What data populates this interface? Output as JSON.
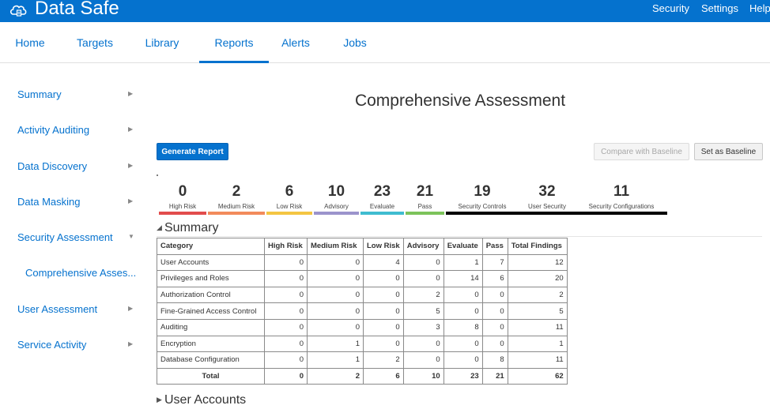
{
  "app": {
    "title": "Data Safe"
  },
  "top_links": {
    "security": "Security",
    "settings": "Settings",
    "help": "Help"
  },
  "nav": {
    "tabs": [
      {
        "label": "Home"
      },
      {
        "label": "Targets"
      },
      {
        "label": "Library"
      },
      {
        "label": "Reports",
        "active": true
      },
      {
        "label": "Alerts"
      },
      {
        "label": "Jobs"
      }
    ]
  },
  "sidebar": {
    "items": [
      {
        "label": "Summary",
        "arrow": "▶"
      },
      {
        "label": "Activity Auditing",
        "arrow": "▶"
      },
      {
        "label": "Data Discovery",
        "arrow": "▶"
      },
      {
        "label": "Data Masking",
        "arrow": "▶"
      },
      {
        "label": "Security Assessment",
        "arrow": "▼"
      },
      {
        "label": "Comprehensive Asses..."
      },
      {
        "label": "User Assessment",
        "arrow": "▶"
      },
      {
        "label": "Service Activity",
        "arrow": "▶"
      }
    ]
  },
  "page": {
    "title": "Comprehensive Assessment"
  },
  "actions": {
    "generate": "Generate Report",
    "compare": "Compare with Baseline",
    "baseline": "Set as Baseline"
  },
  "stats": [
    {
      "value": "0",
      "label": "High Risk",
      "color": "#e24c4c"
    },
    {
      "value": "2",
      "label": "Medium Risk",
      "color": "#f28b5b"
    },
    {
      "value": "6",
      "label": "Low Risk",
      "color": "#f4c542"
    },
    {
      "value": "10",
      "label": "Advisory",
      "color": "#9b93cc"
    },
    {
      "value": "23",
      "label": "Evaluate",
      "color": "#3fbcd0"
    },
    {
      "value": "21",
      "label": "Pass",
      "color": "#7cc35a"
    },
    {
      "value": "19",
      "label": "Security Controls",
      "color": "#000000"
    },
    {
      "value": "32",
      "label": "User Security",
      "color": "#000000"
    },
    {
      "value": "11",
      "label": "Security Configurations",
      "color": "#000000"
    }
  ],
  "summary": {
    "heading": "Summary",
    "toggle": "◢",
    "columns": [
      "Category",
      "High Risk",
      "Medium Risk",
      "Low Risk",
      "Advisory",
      "Evaluate",
      "Pass",
      "Total Findings"
    ],
    "rows": [
      [
        "User Accounts",
        "0",
        "0",
        "4",
        "0",
        "1",
        "7",
        "12"
      ],
      [
        "Privileges and Roles",
        "0",
        "0",
        "0",
        "0",
        "14",
        "6",
        "20"
      ],
      [
        "Authorization Control",
        "0",
        "0",
        "0",
        "2",
        "0",
        "0",
        "2"
      ],
      [
        "Fine-Grained Access Control",
        "0",
        "0",
        "0",
        "5",
        "0",
        "0",
        "5"
      ],
      [
        "Auditing",
        "0",
        "0",
        "0",
        "3",
        "8",
        "0",
        "11"
      ],
      [
        "Encryption",
        "0",
        "1",
        "0",
        "0",
        "0",
        "0",
        "1"
      ],
      [
        "Database Configuration",
        "0",
        "1",
        "2",
        "0",
        "0",
        "8",
        "11"
      ]
    ],
    "total": [
      "Total",
      "0",
      "2",
      "6",
      "10",
      "23",
      "21",
      "62"
    ]
  },
  "user_accounts": {
    "heading": "User Accounts",
    "toggle": "▶"
  }
}
